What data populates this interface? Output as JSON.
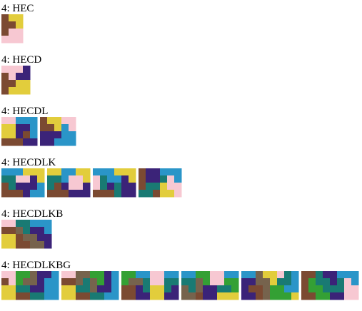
{
  "palette": {
    "H": "#7b4a32",
    "E": "#e2cd3c",
    "C": "#f7c8d2",
    "D": "#3b2378",
    "L": "#2a95c8",
    "K": "#197a73",
    "B": "#76634d",
    "G": "#34a034"
  },
  "rows": [
    {
      "label": "4: HEC",
      "grid_cols": 3,
      "grid_rows": 4,
      "tiles": [
        [
          "HEE",
          "HHE",
          "HCC",
          "CCC"
        ]
      ]
    },
    {
      "label": "4: HECD",
      "grid_cols": 4,
      "grid_rows": 4,
      "tiles": [
        [
          "CCCD",
          "HCDD",
          "HHEE",
          "HEEE"
        ]
      ]
    },
    {
      "label": "4: HECDL",
      "grid_cols": 5,
      "grid_rows": 4,
      "tiles": [
        [
          "CCLLL",
          "EEDDL",
          "EEDHL",
          "HHHDD"
        ],
        [
          "HEECC",
          "HHELC",
          "DDDLL",
          "DDLLL"
        ]
      ]
    },
    {
      "label": "4: HECDLK",
      "grid_cols": 6,
      "grid_rows": 4,
      "tiles": [
        [
          "LLLEEE",
          "KKCCDE",
          "HKDDDL",
          "HHHDLL"
        ],
        [
          "EELLEE",
          "KKLCCE",
          "KHDCCD",
          "HHHDDD"
        ],
        [
          "LLLEEE",
          "CKLLDE",
          "CKDKDD",
          "HHHKDD"
        ],
        [
          "HDDLLL",
          "HDDKCL",
          "HKKECC",
          "KKHEEC"
        ]
      ]
    },
    {
      "label": "4: HECDLKB",
      "grid_cols": 7,
      "grid_rows": 4,
      "tiles": [
        [
          "CCKKLLL",
          "HHBKDDL",
          "EEHBBDD",
          "EEHHBBD"
        ]
      ]
    },
    {
      "label": "4: HECDLKBG",
      "grid_cols": 8,
      "grid_rows": 4,
      "tiles": [
        [
          "CCGGBDDL",
          "HCGBBDLL",
          "EEKKDDLL",
          "EEHHKKLL"
        ],
        [
          "CCBBGGDL",
          "HHBKBGDL",
          "EEKKBDDL",
          "EEHHKKLL"
        ],
        [
          "GGLLCCLL",
          "GBBKCCKK",
          "HHDKEEKD",
          "HHDDEEDD"
        ],
        [
          "LLGGCCLL",
          "KKBGCCGG",
          "BKBDDKKG",
          "BBHDDEEE"
        ],
        [
          "LLBEECKL",
          "DDBBEKKL",
          "DHHBGGLL",
          "DDHBGGGE"
        ],
        [
          "HHKDDLLL",
          "HGKKDKCL",
          "HGGKKKCC",
          "HHGGDDCC"
        ]
      ]
    }
  ]
}
